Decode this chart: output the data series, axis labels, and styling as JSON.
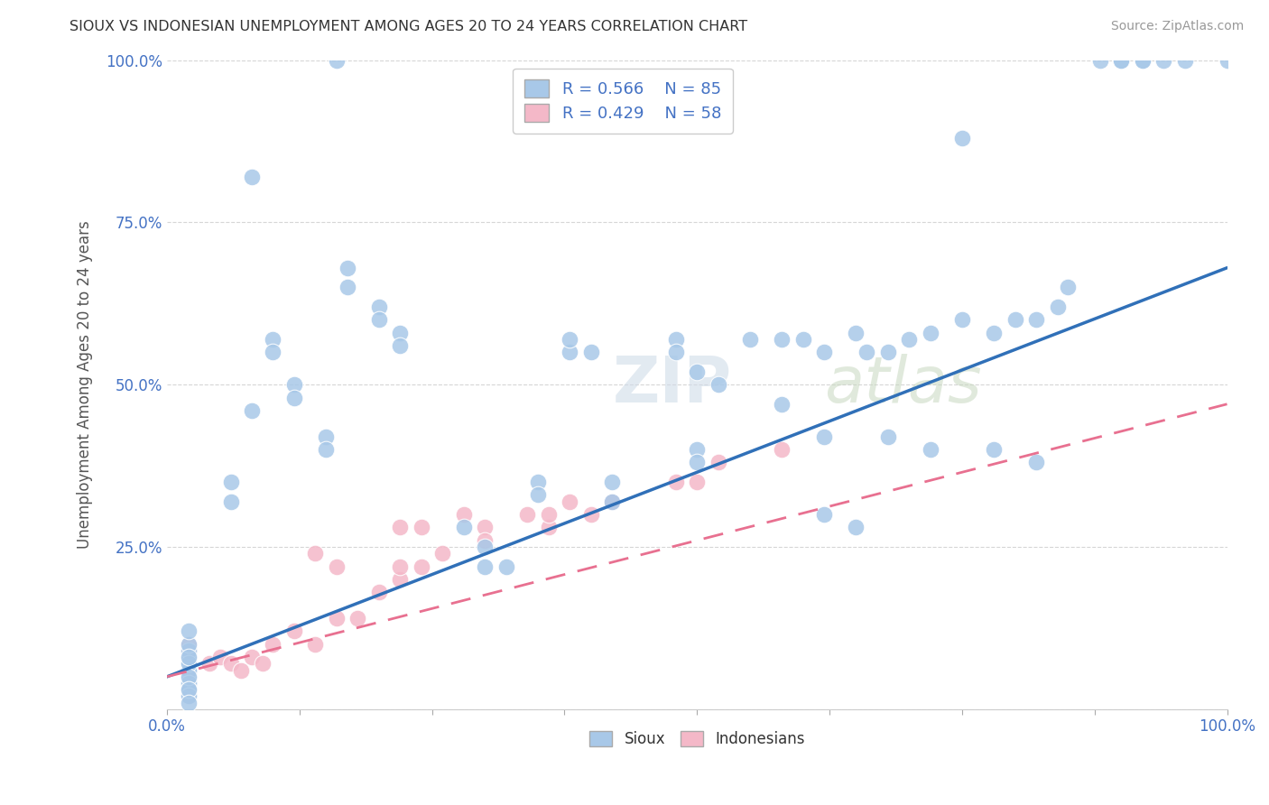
{
  "title": "SIOUX VS INDONESIAN UNEMPLOYMENT AMONG AGES 20 TO 24 YEARS CORRELATION CHART",
  "source": "Source: ZipAtlas.com",
  "ylabel": "Unemployment Among Ages 20 to 24 years",
  "xlim": [
    0,
    1
  ],
  "ylim": [
    0,
    1
  ],
  "sioux_R": 0.566,
  "sioux_N": 85,
  "indonesian_R": 0.429,
  "indonesian_N": 58,
  "blue_color": "#a8c8e8",
  "pink_color": "#f4b8c8",
  "blue_line_color": "#3070b8",
  "pink_line_color": "#e87090",
  "blue_line_start_y": 0.05,
  "blue_line_end_y": 0.68,
  "pink_line_start_y": 0.05,
  "pink_line_end_y": 0.47,
  "tick_color": "#4472c4",
  "watermark_text": "ZIPatlas",
  "background_color": "#ffffff",
  "grid_color": "#cccccc",
  "sioux_x": [
    0.16,
    0.02,
    0.02,
    0.02,
    0.02,
    0.02,
    0.02,
    0.02,
    0.02,
    0.02,
    0.02,
    0.02,
    0.02,
    0.02,
    0.02,
    0.02,
    0.02,
    0.02,
    0.02,
    0.02,
    0.08,
    0.17,
    0.17,
    0.2,
    0.2,
    0.22,
    0.22,
    0.1,
    0.1,
    0.12,
    0.12,
    0.15,
    0.15,
    0.38,
    0.38,
    0.4,
    0.48,
    0.48,
    0.5,
    0.52,
    0.55,
    0.58,
    0.6,
    0.62,
    0.65,
    0.66,
    0.68,
    0.7,
    0.72,
    0.75,
    0.78,
    0.8,
    0.82,
    0.84,
    0.85,
    0.58,
    0.62,
    0.68,
    0.72,
    0.78,
    0.82,
    0.9,
    0.92,
    0.94,
    0.96,
    1.0,
    0.88,
    0.9,
    0.92,
    0.35,
    0.35,
    0.08,
    0.62,
    0.65,
    0.75,
    0.28,
    0.3,
    0.3,
    0.32,
    0.06,
    0.06,
    0.42,
    0.42,
    0.5,
    0.5
  ],
  "sioux_y": [
    1.0,
    0.06,
    0.07,
    0.05,
    0.04,
    0.03,
    0.02,
    0.08,
    0.09,
    0.1,
    0.12,
    0.06,
    0.07,
    0.04,
    0.03,
    0.05,
    0.02,
    0.08,
    0.03,
    0.01,
    0.82,
    0.68,
    0.65,
    0.62,
    0.6,
    0.58,
    0.56,
    0.57,
    0.55,
    0.5,
    0.48,
    0.42,
    0.4,
    0.55,
    0.57,
    0.55,
    0.57,
    0.55,
    0.52,
    0.5,
    0.57,
    0.57,
    0.57,
    0.55,
    0.58,
    0.55,
    0.55,
    0.57,
    0.58,
    0.6,
    0.58,
    0.6,
    0.6,
    0.62,
    0.65,
    0.47,
    0.42,
    0.42,
    0.4,
    0.4,
    0.38,
    1.0,
    1.0,
    1.0,
    1.0,
    1.0,
    1.0,
    1.0,
    1.0,
    0.35,
    0.33,
    0.46,
    0.3,
    0.28,
    0.88,
    0.28,
    0.25,
    0.22,
    0.22,
    0.35,
    0.32,
    0.35,
    0.32,
    0.4,
    0.38
  ],
  "indo_x": [
    0.02,
    0.02,
    0.02,
    0.02,
    0.02,
    0.02,
    0.02,
    0.02,
    0.02,
    0.02,
    0.02,
    0.02,
    0.02,
    0.02,
    0.02,
    0.02,
    0.02,
    0.02,
    0.02,
    0.02,
    0.02,
    0.02,
    0.02,
    0.02,
    0.02,
    0.04,
    0.05,
    0.06,
    0.07,
    0.08,
    0.09,
    0.1,
    0.12,
    0.14,
    0.16,
    0.18,
    0.2,
    0.22,
    0.24,
    0.26,
    0.14,
    0.16,
    0.22,
    0.24,
    0.28,
    0.3,
    0.34,
    0.36,
    0.38,
    0.4,
    0.22,
    0.3,
    0.36,
    0.42,
    0.48,
    0.5,
    0.52,
    0.58
  ],
  "indo_y": [
    0.06,
    0.07,
    0.05,
    0.04,
    0.03,
    0.02,
    0.08,
    0.09,
    0.1,
    0.03,
    0.04,
    0.05,
    0.06,
    0.02,
    0.03,
    0.04,
    0.05,
    0.06,
    0.03,
    0.04,
    0.05,
    0.06,
    0.02,
    0.03,
    0.04,
    0.07,
    0.08,
    0.07,
    0.06,
    0.08,
    0.07,
    0.1,
    0.12,
    0.1,
    0.14,
    0.14,
    0.18,
    0.2,
    0.22,
    0.24,
    0.24,
    0.22,
    0.28,
    0.28,
    0.3,
    0.28,
    0.3,
    0.28,
    0.32,
    0.3,
    0.22,
    0.26,
    0.3,
    0.32,
    0.35,
    0.35,
    0.38,
    0.4
  ]
}
